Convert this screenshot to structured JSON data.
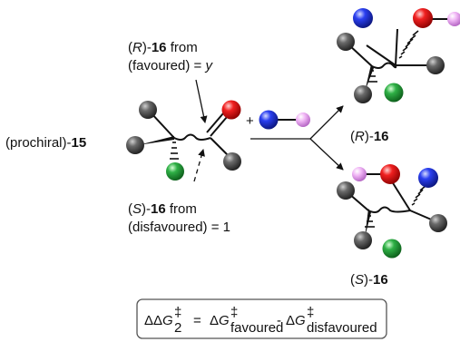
{
  "substrate": {
    "prefix": "(prochiral)-",
    "number": "15"
  },
  "attack_r": {
    "line1_open": "(",
    "line1_config": "R",
    "line1_close": ")-",
    "line1_num": "16",
    "line1_suffix": " from",
    "line2_text": "(favoured) = ",
    "line2_value": "y"
  },
  "attack_s": {
    "line1_open": "(",
    "line1_config": "S",
    "line1_close": ")-",
    "line1_num": "16",
    "line1_suffix": " from",
    "line2_text": "(disfavoured) = 1"
  },
  "reagent": {
    "plus": "+"
  },
  "product_r": {
    "open": "(",
    "config": "R",
    "close": ")-",
    "number": "16"
  },
  "product_s": {
    "open": "(",
    "config": "S",
    "close": ")-",
    "number": "16"
  },
  "equation": {
    "ddg": "ΔΔ",
    "g": "G",
    "dagger": "‡",
    "sub2": "2",
    "eq": "=",
    "dg": "Δ",
    "sub_fav": "favoured",
    "minus": "-",
    "sub_disfav": "disfavoured"
  },
  "colors": {
    "grey": "#3a3a3a",
    "red": "#e8131b",
    "green": "#1f9a37",
    "blue": "#1c2fd6",
    "pink": "#e79bf0",
    "box_border": "#555555"
  }
}
